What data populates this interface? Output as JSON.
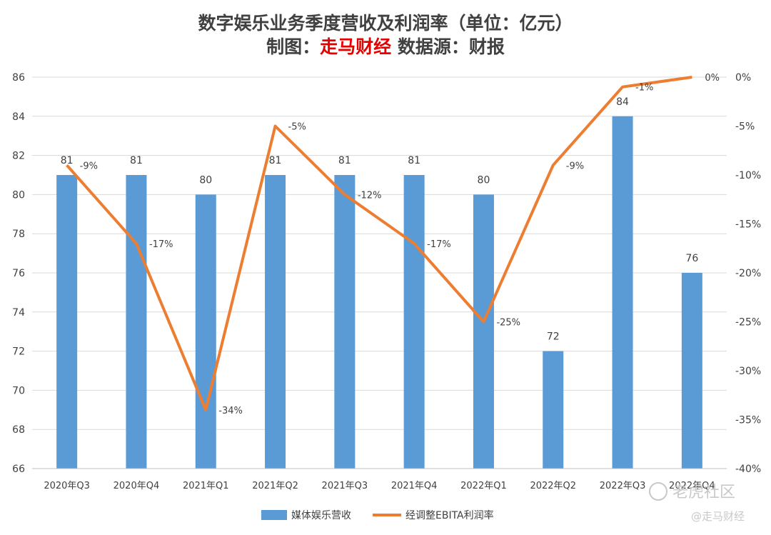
{
  "chart_data": {
    "type": "bar+line",
    "title_line1": "数字娱乐业务季度营收及利润率（单位：亿元）",
    "title_line2_prefix": "制图：",
    "title_line2_brand": "走马财经",
    "title_line2_suffix": " 数据源：财报",
    "categories": [
      "2020年Q3",
      "2020年Q4",
      "2021年Q1",
      "2021年Q2",
      "2021年Q3",
      "2021年Q4",
      "2022年Q1",
      "2022年Q2",
      "2022年Q3",
      "2022年Q4"
    ],
    "series": [
      {
        "name": "媒体娱乐营收",
        "kind": "bar",
        "axis": "left",
        "values": [
          81,
          81,
          80,
          81,
          81,
          81,
          80,
          72,
          84,
          76
        ],
        "labels": [
          "81",
          "81",
          "80",
          "81",
          "81",
          "81",
          "80",
          "72",
          "84",
          "76"
        ]
      },
      {
        "name": "经调整EBITA利润率",
        "kind": "line",
        "axis": "right",
        "values": [
          -9,
          -17,
          -34,
          -5,
          -12,
          -17,
          -25,
          -9,
          -1,
          0
        ],
        "labels": [
          "-9%",
          "-17%",
          "-34%",
          "-5%",
          "-12%",
          "-17%",
          "-25%",
          "-9%",
          "-1%",
          "0%"
        ]
      }
    ],
    "y_left": {
      "min": 66,
      "max": 86,
      "ticks": [
        "86",
        "84",
        "82",
        "80",
        "78",
        "76",
        "74",
        "72",
        "70",
        "68",
        "66"
      ]
    },
    "y_right": {
      "min": -40,
      "max": 0,
      "ticks": [
        "0%",
        "-5%",
        "-10%",
        "-15%",
        "-20%",
        "-25%",
        "-30%",
        "-35%",
        "-40%"
      ]
    },
    "gridlines": true,
    "legend_position": "bottom",
    "colors": {
      "bar": "#5b9bd5",
      "line": "#ed7d31",
      "grid": "#d9d9d9",
      "text": "#404040",
      "brand": "#e60000"
    }
  },
  "watermark": {
    "main": "老虎社区",
    "sub": "@走马财经"
  }
}
